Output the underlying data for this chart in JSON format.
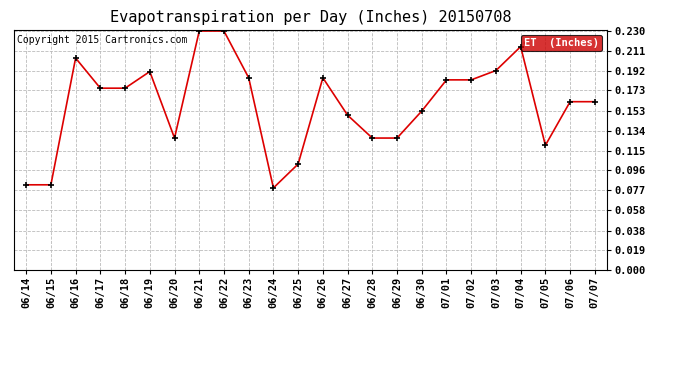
{
  "title": "Evapotranspiration per Day (Inches) 20150708",
  "copyright_text": "Copyright 2015 Cartronics.com",
  "legend_label": "ET  (Inches)",
  "dates": [
    "06/14",
    "06/15",
    "06/16",
    "06/17",
    "06/18",
    "06/19",
    "06/20",
    "06/21",
    "06/22",
    "06/23",
    "06/24",
    "06/25",
    "06/26",
    "06/27",
    "06/28",
    "06/29",
    "06/30",
    "07/01",
    "07/02",
    "07/03",
    "07/04",
    "07/05",
    "07/06",
    "07/07"
  ],
  "values": [
    0.082,
    0.082,
    0.204,
    0.175,
    0.175,
    0.191,
    0.127,
    0.23,
    0.23,
    0.185,
    0.079,
    0.102,
    0.185,
    0.149,
    0.127,
    0.127,
    0.153,
    0.183,
    0.183,
    0.192,
    0.215,
    0.12,
    0.162,
    0.162
  ],
  "line_color": "#dd0000",
  "marker_color": "#000000",
  "background_color": "#ffffff",
  "grid_color": "#bbbbbb",
  "yticks": [
    0.0,
    0.019,
    0.038,
    0.058,
    0.077,
    0.096,
    0.115,
    0.134,
    0.153,
    0.173,
    0.192,
    0.211,
    0.23
  ],
  "ylim": [
    0.0,
    0.23
  ],
  "title_fontsize": 11,
  "legend_bg_color": "#cc0000",
  "legend_text_color": "#ffffff",
  "tick_fontsize": 7.5,
  "copyright_fontsize": 7
}
